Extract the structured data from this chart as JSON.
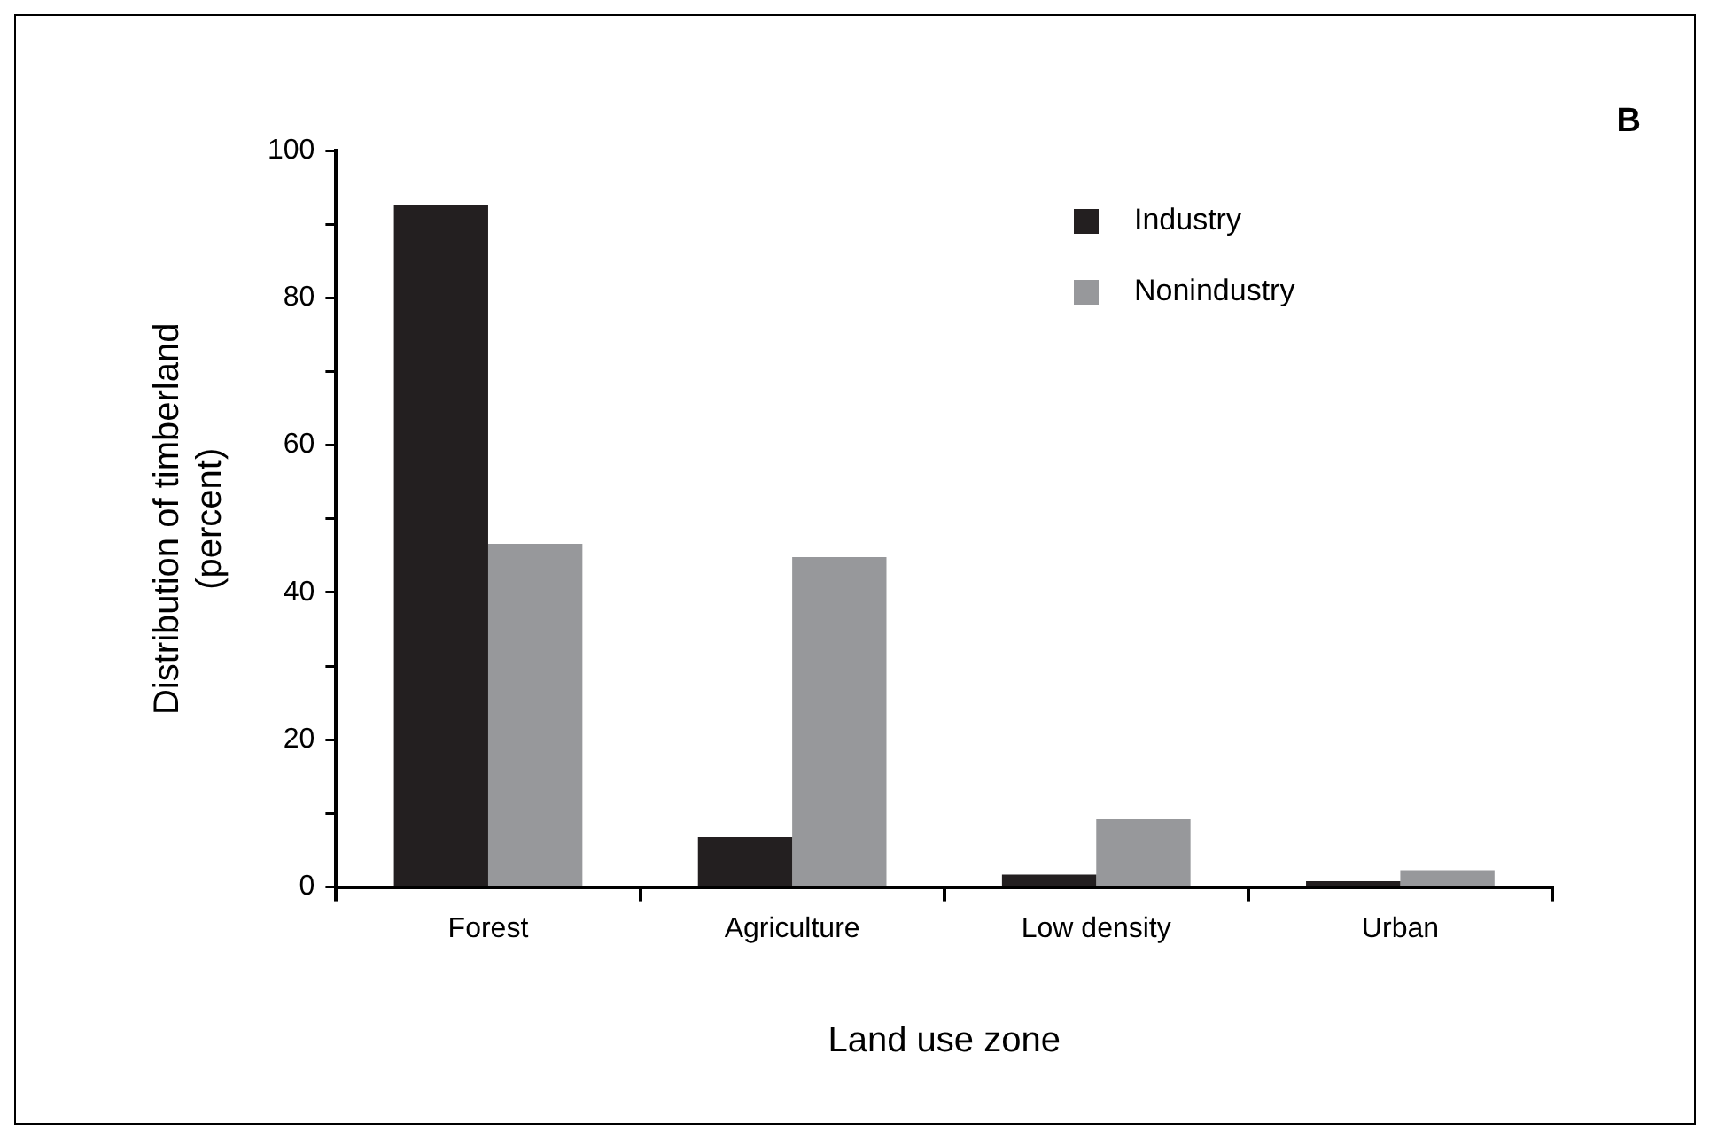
{
  "chart_data": {
    "type": "bar",
    "xlabel": "Land use zone",
    "ylabel": "Distribution of timberland\n(percent)",
    "annotations": [
      "B"
    ],
    "categories": [
      "Forest",
      "Agriculture",
      "Low density",
      "Urban"
    ],
    "series": [
      {
        "name": "Industry",
        "color": "#231f20",
        "values": [
          92.6,
          6.8,
          1.7,
          0.8
        ]
      },
      {
        "name": "Nonindustry",
        "color": "#97989b",
        "values": [
          46.6,
          44.8,
          9.2,
          2.3
        ]
      }
    ],
    "ylim": [
      0,
      100
    ],
    "yticks": [
      0,
      {
        "value": 10,
        "label": null
      },
      20,
      {
        "value": 30,
        "label": null
      },
      40,
      {
        "value": 50,
        "label": null
      },
      60,
      {
        "value": 70,
        "label": null
      },
      80,
      {
        "value": 90,
        "label": null
      },
      100
    ],
    "grid": false,
    "legend": "top right"
  }
}
